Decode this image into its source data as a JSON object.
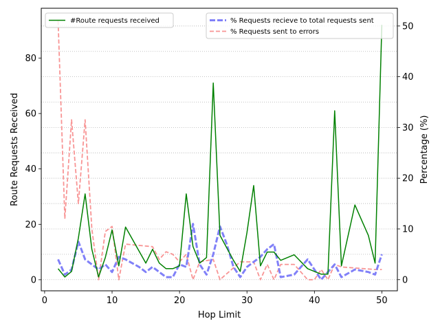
{
  "chart_data": {
    "type": "line",
    "title": "",
    "xlabel": "Hop Limit",
    "ylabel_left": "Route Requests Received",
    "ylabel_right": "Percentage (%)",
    "xlim": [
      -0.5,
      52.3
    ],
    "ylim_left": [
      -4,
      98
    ],
    "ylim_right": [
      -2.2,
      53.5
    ],
    "xticks": [
      0,
      10,
      20,
      30,
      40,
      50
    ],
    "yticks_left": [
      0,
      20,
      40,
      60,
      80
    ],
    "yticks_right": [
      0,
      10,
      20,
      30,
      40,
      50
    ],
    "grid": "right-axis horizontal dotted",
    "legend_left_placement": "top-left",
    "legend_right_placement": "top-right",
    "series": [
      {
        "name": "#Route requests received",
        "axis": "left",
        "color": "#008000",
        "style": "solid",
        "x": [
          2,
          3,
          4,
          5,
          6,
          7,
          8,
          9,
          10,
          11,
          12,
          15,
          16,
          17,
          18,
          19,
          20,
          21,
          22,
          23,
          24,
          25,
          26,
          28,
          29,
          30,
          31,
          32,
          33,
          34,
          35,
          37,
          39,
          41,
          42,
          43,
          44,
          46,
          48,
          49,
          50
        ],
        "y": [
          4,
          1,
          3,
          15,
          31,
          11,
          1,
          8,
          18,
          5,
          19,
          6,
          11,
          6,
          4,
          4,
          5,
          31,
          12,
          6,
          8,
          71,
          16,
          7,
          3,
          17,
          34,
          5,
          10,
          10,
          7,
          9,
          4,
          2,
          2,
          61,
          5,
          27,
          16,
          6,
          92
        ]
      },
      {
        "name": "% Requests recieve to total requests sent",
        "axis": "right",
        "color": "#8080f8",
        "style": "dashed",
        "x": [
          2,
          3,
          4,
          5,
          6,
          8,
          9,
          10,
          11,
          12,
          14,
          15,
          16,
          17,
          18,
          19,
          20,
          21,
          22,
          23,
          24,
          25,
          26,
          27,
          28,
          29,
          30,
          31,
          32,
          33,
          34,
          35,
          37,
          39,
          41,
          43,
          44,
          46,
          48,
          49,
          50
        ],
        "y": [
          4,
          1,
          2,
          7.5,
          4,
          2,
          3,
          1.5,
          4.5,
          4,
          2.5,
          1.5,
          2.5,
          1.5,
          0.5,
          0.5,
          3,
          2.5,
          11,
          3,
          1,
          5,
          10.5,
          7,
          2.5,
          0.5,
          2.5,
          3.5,
          4.5,
          6,
          7,
          0.5,
          1,
          4,
          0,
          3,
          0.5,
          2,
          1.5,
          1,
          5
        ]
      },
      {
        "name": "% Requests sent to errors",
        "axis": "right",
        "color": "#f89494",
        "style": "dashed",
        "x": [
          2,
          3,
          4,
          5,
          6,
          7,
          8,
          9,
          10,
          11,
          12,
          16,
          17,
          18,
          19,
          20,
          21,
          22,
          23,
          25,
          26,
          29,
          31,
          32,
          33,
          34,
          35,
          37,
          39,
          40,
          41,
          42,
          43,
          44,
          49,
          50
        ],
        "y": [
          51,
          12,
          31.5,
          15,
          31.5,
          10,
          0,
          9.5,
          10.5,
          0,
          7,
          6.5,
          4,
          5.5,
          5,
          3.5,
          5,
          0,
          3.5,
          4,
          0,
          3.5,
          3.5,
          0,
          3,
          0,
          3,
          3,
          0,
          0,
          2,
          0,
          3,
          2.5,
          2,
          2
        ]
      }
    ]
  }
}
